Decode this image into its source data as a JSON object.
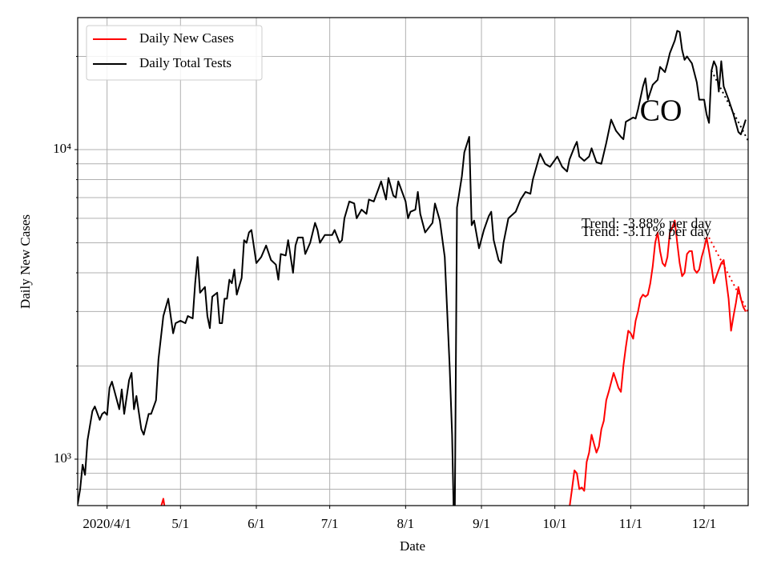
{
  "chart_data": {
    "type": "line",
    "xlabel": "Date",
    "ylabel": "Daily New Cases",
    "yscale": "log",
    "grid": true,
    "legend": "upper left",
    "xlim": [
      "2020-03-20",
      "2020-12-19"
    ],
    "xticks": [
      {
        "value": "2020-04-01",
        "label": "2020/4/1"
      },
      {
        "value": "2020-05-01",
        "label": "5/1"
      },
      {
        "value": "2020-06-01",
        "label": "6/1"
      },
      {
        "value": "2020-07-01",
        "label": "7/1"
      },
      {
        "value": "2020-08-01",
        "label": "8/1"
      },
      {
        "value": "2020-09-01",
        "label": "9/1"
      },
      {
        "value": "2020-10-01",
        "label": "10/1"
      },
      {
        "value": "2020-11-01",
        "label": "11/1"
      },
      {
        "value": "2020-12-01",
        "label": "12/1"
      }
    ],
    "ylim": [
      708,
      26700
    ],
    "yticks": [
      {
        "value": 1000,
        "label": "10³"
      },
      {
        "value": 10000,
        "label": "10⁴"
      }
    ],
    "yminorticks": [
      800,
      900,
      2000,
      3000,
      4000,
      5000,
      6000,
      7000,
      8000,
      9000,
      20000
    ],
    "series": [
      {
        "name": "Daily New Cases",
        "color": "#ff0000",
        "x": [
          "2020-04-22",
          "2020-04-23",
          "2020-04-24",
          "2020-04-25",
          "2020-06-01",
          "2020-10-07",
          "2020-10-08",
          "2020-10-09",
          "2020-10-10",
          "2020-10-11",
          "2020-10-12",
          "2020-10-13",
          "2020-10-14",
          "2020-10-15",
          "2020-10-16",
          "2020-10-17",
          "2020-10-18",
          "2020-10-19",
          "2020-10-20",
          "2020-10-21",
          "2020-10-22",
          "2020-10-23",
          "2020-10-25",
          "2020-10-26",
          "2020-10-27",
          "2020-10-28",
          "2020-10-29",
          "2020-10-30",
          "2020-10-31",
          "2020-11-01",
          "2020-11-02",
          "2020-11-03",
          "2020-11-04",
          "2020-11-05",
          "2020-11-06",
          "2020-11-07",
          "2020-11-08",
          "2020-11-09",
          "2020-11-10",
          "2020-11-11",
          "2020-11-12",
          "2020-11-13",
          "2020-11-14",
          "2020-11-15",
          "2020-11-16",
          "2020-11-17",
          "2020-11-18",
          "2020-11-19",
          "2020-11-20",
          "2020-11-21",
          "2020-11-22",
          "2020-11-23",
          "2020-11-24",
          "2020-11-25",
          "2020-11-26",
          "2020-11-27",
          "2020-11-28",
          "2020-11-29",
          "2020-11-30",
          "2020-12-01",
          "2020-12-02",
          "2020-12-03",
          "2020-12-04",
          "2020-12-05",
          "2020-12-06",
          "2020-12-07",
          "2020-12-08",
          "2020-12-09",
          "2020-12-10",
          "2020-12-11",
          "2020-12-12",
          "2020-12-13",
          "2020-12-14",
          "2020-12-15",
          "2020-12-16",
          "2020-12-17",
          "2020-12-18"
        ],
        "values": [
          660,
          700,
          745,
          660,
          null,
          700,
          800,
          920,
          900,
          800,
          810,
          790,
          980,
          1050,
          1200,
          1120,
          1050,
          1100,
          1250,
          1330,
          1550,
          1650,
          1900,
          1800,
          1700,
          1650,
          2000,
          2300,
          2600,
          2550,
          2450,
          2800,
          3000,
          3300,
          3400,
          3350,
          3400,
          3700,
          4200,
          5000,
          5400,
          4700,
          4300,
          4200,
          4500,
          5400,
          5600,
          5900,
          5000,
          4300,
          3900,
          4000,
          4600,
          4700,
          4700,
          4100,
          4000,
          4100,
          4500,
          4800,
          5200,
          4700,
          4200,
          3700,
          3900,
          4100,
          4300,
          4400,
          3800,
          3300,
          2600,
          2900,
          3200,
          3600,
          3300,
          3100,
          3000
        ]
      },
      {
        "name": "Daily Total Tests",
        "color": "#000000",
        "x": [
          "2020-03-20",
          "2020-03-21",
          "2020-03-22",
          "2020-03-23",
          "2020-03-24",
          "2020-03-26",
          "2020-03-27",
          "2020-03-29",
          "2020-03-30",
          "2020-03-31",
          "2020-04-01",
          "2020-04-02",
          "2020-04-03",
          "2020-04-06",
          "2020-04-07",
          "2020-04-08",
          "2020-04-10",
          "2020-04-11",
          "2020-04-12",
          "2020-04-13",
          "2020-04-15",
          "2020-04-16",
          "2020-04-18",
          "2020-04-19",
          "2020-04-21",
          "2020-04-22",
          "2020-04-24",
          "2020-04-26",
          "2020-04-28",
          "2020-04-29",
          "2020-05-01",
          "2020-05-03",
          "2020-05-04",
          "2020-05-06",
          "2020-05-07",
          "2020-05-08",
          "2020-05-09",
          "2020-05-11",
          "2020-05-12",
          "2020-05-13",
          "2020-05-14",
          "2020-05-16",
          "2020-05-17",
          "2020-05-18",
          "2020-05-19",
          "2020-05-20",
          "2020-05-21",
          "2020-05-22",
          "2020-05-23",
          "2020-05-24",
          "2020-05-26",
          "2020-05-27",
          "2020-05-28",
          "2020-05-29",
          "2020-05-30",
          "2020-06-01",
          "2020-06-03",
          "2020-06-05",
          "2020-06-07",
          "2020-06-09",
          "2020-06-10",
          "2020-06-11",
          "2020-06-13",
          "2020-06-14",
          "2020-06-16",
          "2020-06-17",
          "2020-06-18",
          "2020-06-20",
          "2020-06-21",
          "2020-06-23",
          "2020-06-25",
          "2020-06-26",
          "2020-06-27",
          "2020-06-29",
          "2020-07-02",
          "2020-07-03",
          "2020-07-05",
          "2020-07-06",
          "2020-07-07",
          "2020-07-09",
          "2020-07-11",
          "2020-07-12",
          "2020-07-14",
          "2020-07-16",
          "2020-07-17",
          "2020-07-19",
          "2020-07-21",
          "2020-07-22",
          "2020-07-24",
          "2020-07-25",
          "2020-07-27",
          "2020-07-28",
          "2020-07-29",
          "2020-08-01",
          "2020-08-02",
          "2020-08-03",
          "2020-08-05",
          "2020-08-06",
          "2020-08-07",
          "2020-08-09",
          "2020-08-12",
          "2020-08-13",
          "2020-08-15",
          "2020-08-17",
          "2020-08-19",
          "2020-08-20",
          "2020-08-21",
          "2020-08-22",
          "2020-08-24",
          "2020-08-25",
          "2020-08-27",
          "2020-08-28",
          "2020-08-29",
          "2020-08-31",
          "2020-09-02",
          "2020-09-04",
          "2020-09-05",
          "2020-09-06",
          "2020-09-08",
          "2020-09-09",
          "2020-09-10",
          "2020-09-12",
          "2020-09-15",
          "2020-09-17",
          "2020-09-19",
          "2020-09-21",
          "2020-09-22",
          "2020-09-25",
          "2020-09-27",
          "2020-09-29",
          "2020-10-02",
          "2020-10-04",
          "2020-10-06",
          "2020-10-07",
          "2020-10-09",
          "2020-10-10",
          "2020-10-11",
          "2020-10-13",
          "2020-10-15",
          "2020-10-16",
          "2020-10-18",
          "2020-10-20",
          "2020-10-22",
          "2020-10-24",
          "2020-10-26",
          "2020-10-28",
          "2020-10-29",
          "2020-10-30",
          "2020-11-02",
          "2020-11-03",
          "2020-11-04",
          "2020-11-06",
          "2020-11-07",
          "2020-11-08",
          "2020-11-10",
          "2020-11-12",
          "2020-11-13",
          "2020-11-15",
          "2020-11-16",
          "2020-11-17",
          "2020-11-19",
          "2020-11-20",
          "2020-11-21",
          "2020-11-22",
          "2020-11-23",
          "2020-11-24",
          "2020-11-26",
          "2020-11-28",
          "2020-11-29",
          "2020-12-01",
          "2020-12-02",
          "2020-12-03",
          "2020-12-04",
          "2020-12-05",
          "2020-12-06",
          "2020-12-07",
          "2020-12-08",
          "2020-12-09",
          "2020-12-11",
          "2020-12-13",
          "2020-12-15",
          "2020-12-16",
          "2020-12-17",
          "2020-12-18"
        ],
        "values": [
          716,
          800,
          960,
          890,
          1150,
          1430,
          1480,
          1340,
          1400,
          1420,
          1390,
          1700,
          1780,
          1450,
          1680,
          1400,
          1800,
          1900,
          1450,
          1600,
          1250,
          1200,
          1400,
          1400,
          1550,
          2100,
          2900,
          3300,
          2550,
          2750,
          2800,
          2750,
          2900,
          2850,
          3700,
          4500,
          3450,
          3600,
          2900,
          2650,
          3350,
          3450,
          2750,
          2750,
          3300,
          3300,
          3800,
          3700,
          4100,
          3400,
          3850,
          5100,
          5000,
          5400,
          5500,
          4300,
          4500,
          4900,
          4400,
          4250,
          3800,
          4600,
          4550,
          5100,
          4000,
          4900,
          5200,
          5200,
          4600,
          5000,
          5800,
          5500,
          5000,
          5300,
          5300,
          5500,
          5000,
          5100,
          6000,
          6800,
          6700,
          6000,
          6400,
          6200,
          6900,
          6800,
          7500,
          7900,
          6900,
          8100,
          7100,
          7000,
          7900,
          6800,
          6000,
          6300,
          6400,
          7300,
          6200,
          5400,
          5800,
          6700,
          5900,
          4500,
          2000,
          1200,
          500,
          6500,
          8200,
          9800,
          11000,
          5700,
          5900,
          4800,
          5500,
          6100,
          6300,
          5100,
          4400,
          4300,
          5000,
          6000,
          6300,
          6900,
          7300,
          7200,
          8000,
          9700,
          9000,
          8800,
          9500,
          8800,
          8500,
          9300,
          10200,
          10600,
          9500,
          9200,
          9500,
          10100,
          9100,
          9000,
          10500,
          12500,
          11500,
          11000,
          10800,
          12300,
          12700,
          12600,
          13500,
          16000,
          17000,
          14500,
          16200,
          16800,
          18500,
          17800,
          19000,
          20500,
          22500,
          24200,
          24000,
          21000,
          19500,
          20000,
          19000,
          16500,
          14500,
          14500,
          13000,
          12200,
          18000,
          19300,
          18500,
          15400,
          19300,
          16000,
          14500,
          13000,
          11400,
          11200,
          11800,
          12500
        ]
      },
      {
        "color": "#ff0000",
        "linestyle": "dotted",
        "x": [
          "2020-12-03",
          "2020-12-19"
        ],
        "values": [
          5200,
          2990
        ]
      },
      {
        "color": "#000000",
        "linestyle": "dotted",
        "x": [
          "2020-12-04",
          "2020-12-19"
        ],
        "values": [
          18000,
          10680
        ]
      }
    ],
    "annotations": [
      {
        "text": "CO"
      },
      {
        "text": "Trend: -3.88% per day"
      },
      {
        "text": "Trend: -3.11% per day"
      }
    ]
  }
}
